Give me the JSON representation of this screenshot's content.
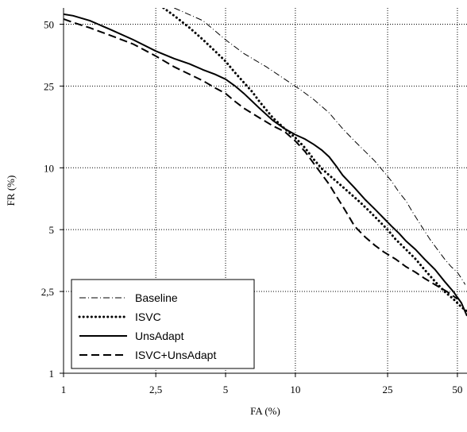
{
  "chart_data": {
    "type": "line",
    "title": "",
    "xlabel": "FA (%)",
    "ylabel": "FR (%)",
    "xscale": "log",
    "yscale": "log",
    "xlim": [
      1,
      55
    ],
    "ylim": [
      1,
      60
    ],
    "grid": true,
    "legend_position": "bottom-left",
    "x_ticks": [
      {
        "value": 1,
        "label": "1"
      },
      {
        "value": 2.5,
        "label": "2,5"
      },
      {
        "value": 5,
        "label": "5"
      },
      {
        "value": 10,
        "label": "10"
      },
      {
        "value": 25,
        "label": "25"
      },
      {
        "value": 50,
        "label": "50"
      }
    ],
    "y_ticks": [
      {
        "value": 1,
        "label": "1"
      },
      {
        "value": 2.5,
        "label": "2,5"
      },
      {
        "value": 5,
        "label": "5"
      },
      {
        "value": 10,
        "label": "10"
      },
      {
        "value": 25,
        "label": "25"
      },
      {
        "value": 50,
        "label": "50"
      }
    ],
    "series": [
      {
        "name": "Baseline",
        "style": "dashdot",
        "x": [
          3.0,
          4.0,
          5.0,
          6.0,
          7.5,
          9.0,
          10.5,
          12.0,
          14.0,
          16.0,
          18.0,
          20.0,
          22.0,
          24.0,
          26.0,
          28.0,
          30.0,
          32.0,
          35.0,
          38.0,
          41.0,
          44.0,
          47.0,
          50.0,
          52.0,
          54.0
        ],
        "y": [
          60,
          52,
          42,
          36,
          31,
          27,
          24,
          21.5,
          18.5,
          15.5,
          13.5,
          12,
          10.8,
          9.6,
          8.6,
          7.6,
          6.9,
          6.1,
          5.2,
          4.5,
          4.0,
          3.6,
          3.3,
          3.1,
          2.9,
          2.7
        ]
      },
      {
        "name": "ISVC",
        "style": "dotted",
        "x": [
          2.7,
          3.0,
          3.5,
          4.0,
          4.5,
          5.0,
          5.5,
          6.0,
          6.5,
          7.0,
          8.0,
          9.0,
          10.0,
          11.0,
          12.0,
          13.0,
          14.0,
          15.0,
          17.0,
          19.0,
          21.0,
          23.0,
          25.0,
          27.0,
          30.0,
          33.0,
          36.0,
          40.0,
          44.0,
          48.0,
          52.0,
          55.0
        ],
        "y": [
          60,
          55,
          48,
          42,
          37,
          33,
          29,
          26,
          23.5,
          21,
          17.5,
          15.5,
          14,
          12.5,
          11,
          9.9,
          9.2,
          8.6,
          7.6,
          6.8,
          6.1,
          5.5,
          5.0,
          4.5,
          4.0,
          3.6,
          3.2,
          2.8,
          2.5,
          2.3,
          2.1,
          2.0
        ]
      },
      {
        "name": "UnsAdapt",
        "style": "solid",
        "x": [
          1.0,
          1.1,
          1.3,
          1.6,
          2.0,
          2.5,
          3.0,
          3.5,
          4.0,
          4.5,
          5.0,
          5.5,
          6.0,
          7.0,
          8.0,
          9.0,
          10.0,
          11.0,
          12.0,
          13.0,
          14.0,
          15.0,
          16.0,
          18.0,
          20.0,
          22.0,
          24.0,
          26.0,
          28.0,
          30.0,
          33.0,
          36.0,
          40.0,
          44.0,
          48.0,
          52.0,
          55.0
        ],
        "y": [
          56,
          55,
          52,
          47,
          42,
          37,
          34,
          32,
          30,
          28.5,
          27,
          25,
          23,
          19.5,
          17,
          15.5,
          14.5,
          13.8,
          13,
          12.2,
          11.3,
          10.2,
          9.2,
          8.0,
          7.0,
          6.3,
          5.7,
          5.2,
          4.8,
          4.4,
          4.0,
          3.6,
          3.2,
          2.8,
          2.5,
          2.2,
          1.9
        ]
      },
      {
        "name": "ISVC+UnsAdapt",
        "style": "dashed",
        "x": [
          1.0,
          1.1,
          1.3,
          1.6,
          2.0,
          2.5,
          3.0,
          3.5,
          4.0,
          4.5,
          5.0,
          5.5,
          6.0,
          7.0,
          8.0,
          9.0,
          10.0,
          11.0,
          12.0,
          13.0,
          14.0,
          15.0,
          16.0,
          17.0,
          18.0,
          20.0,
          22.0,
          24.0,
          27.0,
          30.0,
          33.0,
          36.0,
          40.0,
          45.0,
          50.0
        ],
        "y": [
          53,
          51,
          48,
          44,
          40,
          35,
          31,
          28.5,
          26.5,
          24.5,
          23,
          21,
          19.5,
          17.5,
          16,
          15,
          13.5,
          12,
          10.5,
          9.3,
          8.3,
          7.3,
          6.5,
          5.8,
          5.2,
          4.6,
          4.2,
          3.9,
          3.6,
          3.3,
          3.1,
          2.9,
          2.7,
          2.5,
          2.3
        ]
      }
    ]
  }
}
